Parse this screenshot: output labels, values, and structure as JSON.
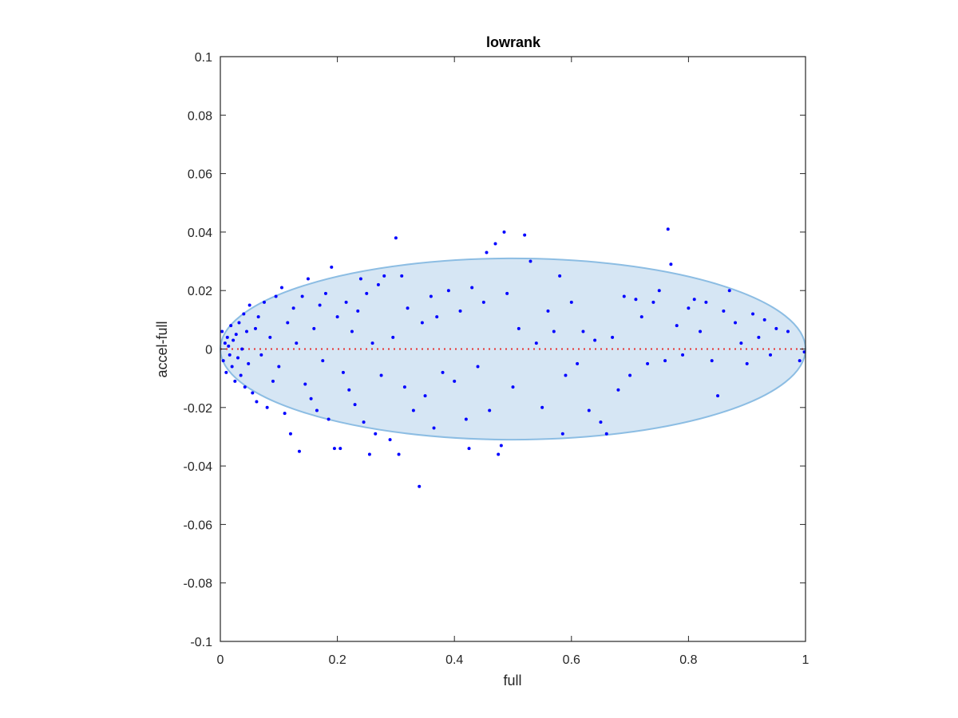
{
  "chart_data": {
    "type": "scatter",
    "title": "lowrank",
    "xlabel": "full",
    "ylabel": "accel-full",
    "xlim": [
      0,
      1
    ],
    "ylim": [
      -0.1,
      0.1
    ],
    "xticks": [
      0,
      0.2,
      0.4,
      0.6,
      0.8,
      1
    ],
    "xtick_labels": [
      "0",
      "0.2",
      "0.4",
      "0.6",
      "0.8",
      "1"
    ],
    "yticks": [
      0.1,
      0.08,
      0.06,
      0.04,
      0.02,
      0,
      -0.02,
      -0.04,
      -0.06,
      -0.08,
      -0.1
    ],
    "ytick_labels": [
      "0.1",
      "0.08",
      "0.06",
      "0.04",
      "0.02",
      "0",
      "-0.02",
      "-0.04",
      "-0.06",
      "-0.08",
      "-0.1"
    ],
    "grid": false,
    "reference_line": {
      "y": 0,
      "style": "dotted",
      "color": "#e8312f"
    },
    "ellipse": {
      "center": [
        0.5,
        0
      ],
      "x_radius": 0.5,
      "y_radius": 0.031,
      "fill": "#d6e6f4",
      "stroke": "#8cbde3"
    },
    "series": [
      {
        "color": "#0000ff",
        "points_sampled": [
          [
            0.003,
            0.006
          ],
          [
            0.005,
            -0.004
          ],
          [
            0.008,
            0.002
          ],
          [
            0.01,
            -0.008
          ],
          [
            0.012,
            0.004
          ],
          [
            0.014,
            0.001
          ],
          [
            0.016,
            -0.002
          ],
          [
            0.018,
            0.008
          ],
          [
            0.02,
            -0.006
          ],
          [
            0.022,
            0.003
          ],
          [
            0.025,
            -0.011
          ],
          [
            0.027,
            0.005
          ],
          [
            0.03,
            -0.003
          ],
          [
            0.032,
            0.009
          ],
          [
            0.035,
            -0.009
          ],
          [
            0.037,
            0.0
          ],
          [
            0.04,
            0.012
          ],
          [
            0.042,
            -0.013
          ],
          [
            0.045,
            0.006
          ],
          [
            0.048,
            -0.005
          ],
          [
            0.05,
            0.015
          ],
          [
            0.055,
            -0.015
          ],
          [
            0.06,
            0.007
          ],
          [
            0.062,
            -0.018
          ],
          [
            0.065,
            0.011
          ],
          [
            0.07,
            -0.002
          ],
          [
            0.075,
            0.016
          ],
          [
            0.08,
            -0.02
          ],
          [
            0.085,
            0.004
          ],
          [
            0.09,
            -0.011
          ],
          [
            0.095,
            0.018
          ],
          [
            0.1,
            -0.006
          ],
          [
            0.105,
            0.021
          ],
          [
            0.11,
            -0.022
          ],
          [
            0.115,
            0.009
          ],
          [
            0.12,
            -0.029
          ],
          [
            0.125,
            0.014
          ],
          [
            0.13,
            0.002
          ],
          [
            0.135,
            -0.035
          ],
          [
            0.14,
            0.018
          ],
          [
            0.145,
            -0.012
          ],
          [
            0.15,
            0.024
          ],
          [
            0.155,
            -0.017
          ],
          [
            0.16,
            0.007
          ],
          [
            0.165,
            -0.021
          ],
          [
            0.17,
            0.015
          ],
          [
            0.175,
            -0.004
          ],
          [
            0.18,
            0.019
          ],
          [
            0.185,
            -0.024
          ],
          [
            0.19,
            0.028
          ],
          [
            0.195,
            -0.034
          ],
          [
            0.2,
            0.011
          ],
          [
            0.205,
            -0.034
          ],
          [
            0.21,
            -0.008
          ],
          [
            0.215,
            0.016
          ],
          [
            0.22,
            -0.014
          ],
          [
            0.225,
            0.006
          ],
          [
            0.23,
            -0.019
          ],
          [
            0.235,
            0.013
          ],
          [
            0.24,
            0.024
          ],
          [
            0.245,
            -0.025
          ],
          [
            0.25,
            0.019
          ],
          [
            0.255,
            -0.036
          ],
          [
            0.26,
            0.002
          ],
          [
            0.265,
            -0.029
          ],
          [
            0.27,
            0.022
          ],
          [
            0.275,
            -0.009
          ],
          [
            0.28,
            0.025
          ],
          [
            0.29,
            -0.031
          ],
          [
            0.295,
            0.004
          ],
          [
            0.3,
            0.038
          ],
          [
            0.305,
            -0.036
          ],
          [
            0.31,
            0.025
          ],
          [
            0.315,
            -0.013
          ],
          [
            0.32,
            0.014
          ],
          [
            0.33,
            -0.021
          ],
          [
            0.34,
            -0.047
          ],
          [
            0.345,
            0.009
          ],
          [
            0.35,
            -0.016
          ],
          [
            0.36,
            0.018
          ],
          [
            0.365,
            -0.027
          ],
          [
            0.37,
            0.011
          ],
          [
            0.38,
            -0.008
          ],
          [
            0.39,
            0.02
          ],
          [
            0.4,
            -0.011
          ],
          [
            0.41,
            0.013
          ],
          [
            0.42,
            -0.024
          ],
          [
            0.425,
            -0.034
          ],
          [
            0.43,
            0.021
          ],
          [
            0.44,
            -0.006
          ],
          [
            0.45,
            0.016
          ],
          [
            0.455,
            0.033
          ],
          [
            0.46,
            -0.021
          ],
          [
            0.47,
            0.036
          ],
          [
            0.475,
            -0.036
          ],
          [
            0.48,
            -0.033
          ],
          [
            0.485,
            0.04
          ],
          [
            0.49,
            0.019
          ],
          [
            0.5,
            -0.013
          ],
          [
            0.51,
            0.007
          ],
          [
            0.52,
            0.039
          ],
          [
            0.53,
            0.03
          ],
          [
            0.54,
            0.002
          ],
          [
            0.55,
            -0.02
          ],
          [
            0.56,
            0.013
          ],
          [
            0.57,
            0.006
          ],
          [
            0.58,
            0.025
          ],
          [
            0.585,
            -0.029
          ],
          [
            0.59,
            -0.009
          ],
          [
            0.6,
            0.016
          ],
          [
            0.61,
            -0.005
          ],
          [
            0.62,
            0.006
          ],
          [
            0.63,
            -0.021
          ],
          [
            0.64,
            0.003
          ],
          [
            0.65,
            -0.025
          ],
          [
            0.66,
            -0.029
          ],
          [
            0.67,
            0.004
          ],
          [
            0.68,
            -0.014
          ],
          [
            0.69,
            0.018
          ],
          [
            0.7,
            -0.009
          ],
          [
            0.71,
            0.017
          ],
          [
            0.72,
            0.011
          ],
          [
            0.73,
            -0.005
          ],
          [
            0.74,
            0.016
          ],
          [
            0.75,
            0.02
          ],
          [
            0.76,
            -0.004
          ],
          [
            0.765,
            0.041
          ],
          [
            0.77,
            0.029
          ],
          [
            0.78,
            0.008
          ],
          [
            0.79,
            -0.002
          ],
          [
            0.8,
            0.014
          ],
          [
            0.81,
            0.017
          ],
          [
            0.82,
            0.006
          ],
          [
            0.83,
            0.016
          ],
          [
            0.84,
            -0.004
          ],
          [
            0.85,
            -0.016
          ],
          [
            0.86,
            0.013
          ],
          [
            0.87,
            0.02
          ],
          [
            0.88,
            0.009
          ],
          [
            0.89,
            0.002
          ],
          [
            0.9,
            -0.005
          ],
          [
            0.91,
            0.012
          ],
          [
            0.92,
            0.004
          ],
          [
            0.93,
            0.01
          ],
          [
            0.94,
            -0.002
          ],
          [
            0.95,
            0.007
          ],
          [
            0.97,
            0.006
          ],
          [
            0.99,
            -0.004
          ],
          [
            0.998,
            -0.001
          ]
        ]
      }
    ]
  }
}
